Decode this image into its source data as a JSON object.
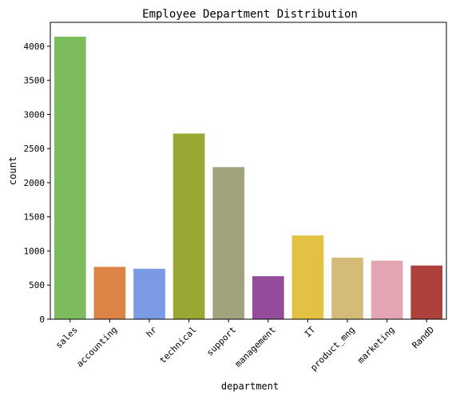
{
  "chart_data": {
    "type": "bar",
    "title": "Employee Department Distribution",
    "xlabel": "department",
    "ylabel": "count",
    "ylim": [
      0,
      4350
    ],
    "yticks": [
      0,
      500,
      1000,
      1500,
      2000,
      2500,
      3000,
      3500,
      4000
    ],
    "grid": false,
    "categories": [
      "sales",
      "accounting",
      "hr",
      "technical",
      "support",
      "management",
      "IT",
      "product_mng",
      "marketing",
      "RandD"
    ],
    "values": [
      4140,
      767,
      739,
      2720,
      2229,
      630,
      1227,
      902,
      858,
      787
    ],
    "colors": [
      "#7dbb5f",
      "#db8446",
      "#7a9be3",
      "#9aa733",
      "#a2a27c",
      "#934b9a",
      "#e3c142",
      "#d4bb78",
      "#e3a5b2",
      "#ad413c"
    ]
  }
}
